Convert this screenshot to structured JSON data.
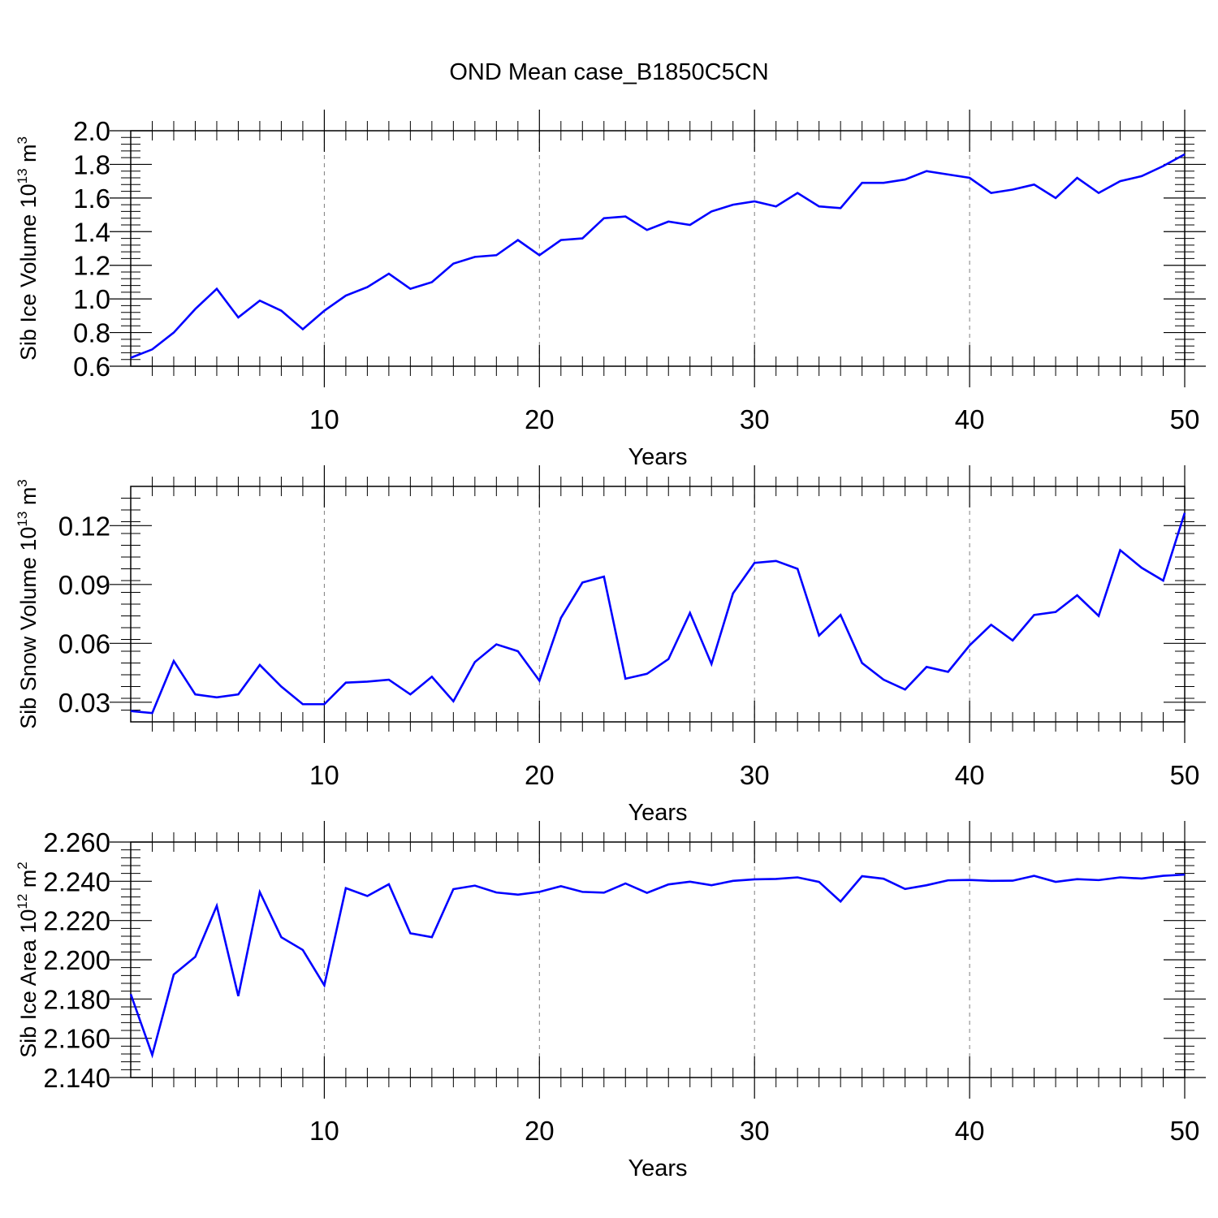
{
  "title": "OND Mean case_B1850C5CN",
  "colors": {
    "line": "#0000ff",
    "axis": "#000000",
    "grid": "#7f7f7f"
  },
  "chart_data": [
    {
      "type": "line",
      "title": "",
      "xlabel": "Years",
      "ylabel": "Sib Ice Volume 10",
      "ylabel_sup": "13",
      "ylabel_unit": " m",
      "ylabel_unit_sup": "3",
      "xlim": [
        1,
        50
      ],
      "ylim": [
        0.6,
        2.0
      ],
      "xticks": [
        10,
        20,
        30,
        40,
        50
      ],
      "xtick_labels": [
        "10",
        "20",
        "30",
        "40",
        "50"
      ],
      "yticks": [
        0.6,
        0.8,
        1.0,
        1.2,
        1.4,
        1.6,
        1.8,
        2.0
      ],
      "ytick_labels": [
        "0.6",
        "0.8",
        "1.0",
        "1.2",
        "1.4",
        "1.6",
        "1.8",
        "2.0"
      ],
      "yminor_step": 0.04,
      "grid": "vertical dashed at major x ticks",
      "series": [
        {
          "name": "Sib Ice Volume",
          "x": [
            1,
            2,
            3,
            4,
            5,
            6,
            7,
            8,
            9,
            10,
            11,
            12,
            13,
            14,
            15,
            16,
            17,
            18,
            19,
            20,
            21,
            22,
            23,
            24,
            25,
            26,
            27,
            28,
            29,
            30,
            31,
            32,
            33,
            34,
            35,
            36,
            37,
            38,
            39,
            40,
            41,
            42,
            43,
            44,
            45,
            46,
            47,
            48,
            49,
            50
          ],
          "values": [
            0.65,
            0.7,
            0.8,
            0.94,
            1.06,
            0.89,
            0.99,
            0.93,
            0.82,
            0.93,
            1.02,
            1.07,
            1.15,
            1.06,
            1.1,
            1.21,
            1.25,
            1.26,
            1.35,
            1.26,
            1.35,
            1.36,
            1.48,
            1.49,
            1.41,
            1.46,
            1.44,
            1.52,
            1.56,
            1.58,
            1.55,
            1.63,
            1.55,
            1.54,
            1.69,
            1.69,
            1.71,
            1.76,
            1.74,
            1.72,
            1.63,
            1.65,
            1.68,
            1.6,
            1.72,
            1.63,
            1.7,
            1.73,
            1.79,
            1.86
          ]
        }
      ]
    },
    {
      "type": "line",
      "title": "",
      "xlabel": "Years",
      "ylabel": "Sib Snow Volume 10",
      "ylabel_sup": "13",
      "ylabel_unit": " m",
      "ylabel_unit_sup": "3",
      "xlim": [
        1,
        50
      ],
      "ylim": [
        0.02,
        0.14
      ],
      "xticks": [
        10,
        20,
        30,
        40,
        50
      ],
      "xtick_labels": [
        "10",
        "20",
        "30",
        "40",
        "50"
      ],
      "yticks": [
        0.03,
        0.06,
        0.09,
        0.12
      ],
      "ytick_labels": [
        "0.03",
        "0.06",
        "0.09",
        "0.12"
      ],
      "yminor_step": 0.006,
      "grid": "vertical dashed at major x ticks",
      "series": [
        {
          "name": "Sib Snow Volume",
          "x": [
            1,
            2,
            3,
            4,
            5,
            6,
            7,
            8,
            9,
            10,
            11,
            12,
            13,
            14,
            15,
            16,
            17,
            18,
            19,
            20,
            21,
            22,
            23,
            24,
            25,
            26,
            27,
            28,
            29,
            30,
            31,
            32,
            33,
            34,
            35,
            36,
            37,
            38,
            39,
            40,
            41,
            42,
            43,
            44,
            45,
            46,
            47,
            48,
            49,
            50
          ],
          "values": [
            0.0255,
            0.0245,
            0.051,
            0.034,
            0.0325,
            0.034,
            0.049,
            0.038,
            0.029,
            0.029,
            0.04,
            0.0405,
            0.0415,
            0.034,
            0.043,
            0.0305,
            0.0505,
            0.0595,
            0.056,
            0.041,
            0.073,
            0.091,
            0.094,
            0.042,
            0.0445,
            0.052,
            0.0755,
            0.0495,
            0.0855,
            0.101,
            0.102,
            0.098,
            0.064,
            0.0745,
            0.05,
            0.0415,
            0.0365,
            0.048,
            0.0455,
            0.059,
            0.0695,
            0.0615,
            0.0745,
            0.076,
            0.0845,
            0.074,
            0.1075,
            0.0985,
            0.092,
            0.1265
          ]
        }
      ]
    },
    {
      "type": "line",
      "title": "",
      "xlabel": "Years",
      "ylabel": "Sib Ice Area 10",
      "ylabel_sup": "12",
      "ylabel_unit": " m",
      "ylabel_unit_sup": "2",
      "xlim": [
        1,
        50
      ],
      "ylim": [
        2.14,
        2.26
      ],
      "xticks": [
        10,
        20,
        30,
        40,
        50
      ],
      "xtick_labels": [
        "10",
        "20",
        "30",
        "40",
        "50"
      ],
      "yticks": [
        2.14,
        2.16,
        2.18,
        2.2,
        2.22,
        2.24,
        2.26
      ],
      "ytick_labels": [
        "2.140",
        "2.160",
        "2.180",
        "2.200",
        "2.220",
        "2.240",
        "2.260"
      ],
      "yminor_step": 0.004,
      "grid": "vertical dashed at major x ticks",
      "series": [
        {
          "name": "Sib Ice Area",
          "x": [
            1,
            2,
            3,
            4,
            5,
            6,
            7,
            8,
            9,
            10,
            11,
            12,
            13,
            14,
            15,
            16,
            17,
            18,
            19,
            20,
            21,
            22,
            23,
            24,
            25,
            26,
            27,
            28,
            29,
            30,
            31,
            32,
            33,
            34,
            35,
            36,
            37,
            38,
            39,
            40,
            41,
            42,
            43,
            44,
            45,
            46,
            47,
            48,
            49,
            50
          ],
          "values": [
            2.1825,
            2.1515,
            2.1925,
            2.2015,
            2.2275,
            2.1815,
            2.2345,
            2.2115,
            2.205,
            2.187,
            2.2365,
            2.2325,
            2.2385,
            2.2135,
            2.2115,
            2.236,
            2.2378,
            2.2343,
            2.2332,
            2.2346,
            2.2375,
            2.2346,
            2.2342,
            2.2389,
            2.2341,
            2.2384,
            2.2398,
            2.238,
            2.2402,
            2.241,
            2.2412,
            2.242,
            2.2397,
            2.2297,
            2.2426,
            2.2413,
            2.2361,
            2.238,
            2.2405,
            2.2407,
            2.2402,
            2.2403,
            2.2428,
            2.2397,
            2.2411,
            2.2406,
            2.242,
            2.2414,
            2.2428,
            2.2434
          ]
        }
      ]
    }
  ]
}
